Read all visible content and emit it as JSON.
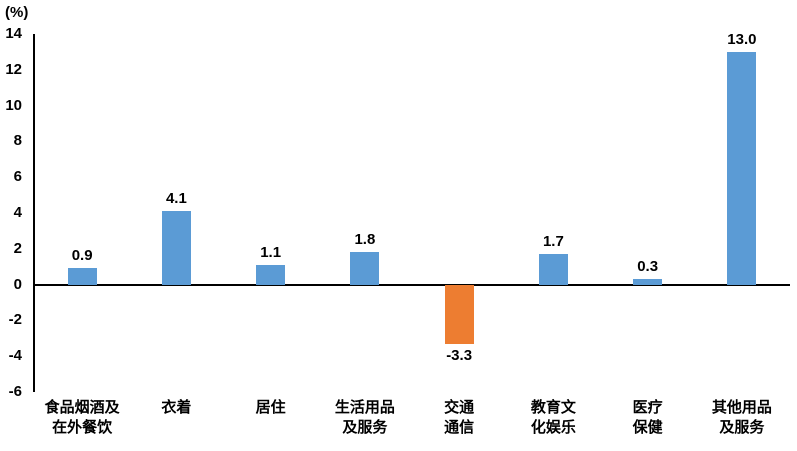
{
  "chart_data": {
    "type": "bar",
    "title": "",
    "unit_label": "(%)",
    "categories": [
      "食品烟酒及\n在外餐饮",
      "衣着",
      "居住",
      "生活用品\n及服务",
      "交通\n通信",
      "教育文\n化娱乐",
      "医疗\n保健",
      "其他用品\n及服务"
    ],
    "values": [
      0.9,
      4.1,
      1.1,
      1.8,
      -3.3,
      1.7,
      0.3,
      13.0
    ],
    "value_labels": [
      "0.9",
      "4.1",
      "1.1",
      "1.8",
      "-3.3",
      "1.7",
      "0.3",
      "13.0"
    ],
    "xlabel": "",
    "ylabel": "(%)",
    "ylim": [
      -6,
      14
    ],
    "yticks": [
      14,
      12,
      10,
      8,
      6,
      4,
      2,
      0,
      -2,
      -4,
      -6
    ],
    "grid": false,
    "legend": "none",
    "colors": {
      "positive_bar": "#5B9BD5",
      "negative_bar": "#ED7D31",
      "axis": "#000000",
      "text": "#000000"
    }
  }
}
